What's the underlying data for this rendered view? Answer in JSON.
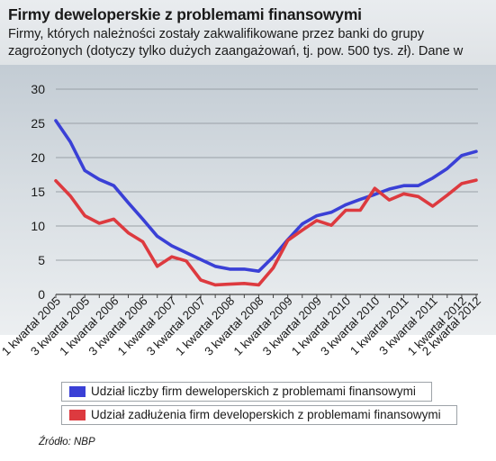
{
  "header": {
    "title": "Firmy deweloperskie z problemami finansowymi",
    "subtitle": "Firmy, których należności zostały zakwalifikowane przez banki do grupy zagrożonych (dotyczy tylko dużych zaangażowań, tj. pow. 500 tys. zł). Dane w proc."
  },
  "source": "Źródło: NBP",
  "colors": {
    "series_blue": "#3a40d6",
    "series_red": "#dd3a3f",
    "grid": "#9aa1a7"
  },
  "chart_data": {
    "type": "line",
    "title": "Firmy deweloperskie z problemami finansowymi",
    "ylim": [
      0,
      30
    ],
    "yticks": [
      0,
      5,
      10,
      15,
      20,
      25,
      30
    ],
    "grid": true,
    "legend_position": "bottom",
    "x": [
      "1 kwartał 2005",
      "2 kwartał 2005",
      "3 kwartał 2005",
      "4 kwartał 2005",
      "1 kwartał 2006",
      "2 kwartał 2006",
      "3 kwartał 2006",
      "4 kwartał 2006",
      "1 kwartał 2007",
      "2 kwartał 2007",
      "3 kwartał 2007",
      "4 kwartał 2007",
      "1 kwartał 2008",
      "2 kwartał 2008",
      "3 kwartał 2008",
      "4 kwartał 2008",
      "1 kwartał 2009",
      "2 kwartał 2009",
      "3 kwartał 2009",
      "4 kwartał 2009",
      "1 kwartał 2010",
      "2 kwartał 2010",
      "3 kwartał 2010",
      "4 kwartał 2010",
      "1 kwartał 2011",
      "2 kwartał 2011",
      "3 kwartał 2011",
      "4 kwartał 2011",
      "1 kwartał 2012",
      "2 kwartał 2012"
    ],
    "xtick_labels": [
      "1 kwartał 2005",
      "3 kwartał 2005",
      "1 kwartał 2006",
      "3 kwartał 2006",
      "1 kwartał 2007",
      "3 kwartał 2007",
      "1 kwartał 2008",
      "3 kwartał 2008",
      "1 kwartał 2009",
      "3 kwartał 2009",
      "1 kwartał 2010",
      "3 kwartał 2010",
      "1 kwartał 2011",
      "3 kwartał 2011",
      "1 kwartał 2012",
      "2 kwartał 2012"
    ],
    "series": [
      {
        "name": "Udział liczby firm deweloperskich z problemami finansowymi",
        "color": "#3a40d6",
        "values": [
          25.4,
          22.3,
          18.1,
          16.8,
          15.9,
          13.4,
          11.0,
          8.5,
          7.1,
          6.1,
          5.1,
          4.1,
          3.7,
          3.7,
          3.4,
          5.5,
          8.0,
          10.3,
          11.5,
          12.0,
          13.1,
          13.9,
          14.6,
          15.4,
          15.9,
          15.9,
          17.0,
          18.4,
          20.3,
          20.9
        ]
      },
      {
        "name": "Udział zadłużenia firm developerskich z problemami finansowymi",
        "color": "#dd3a3f",
        "values": [
          16.6,
          14.4,
          11.5,
          10.4,
          11.0,
          9.0,
          7.7,
          4.1,
          5.5,
          4.9,
          2.1,
          1.4,
          1.5,
          1.6,
          1.4,
          3.9,
          7.9,
          9.4,
          10.8,
          10.1,
          12.3,
          12.3,
          15.5,
          13.8,
          14.7,
          14.3,
          12.9,
          14.5,
          16.2,
          16.7
        ]
      }
    ]
  }
}
